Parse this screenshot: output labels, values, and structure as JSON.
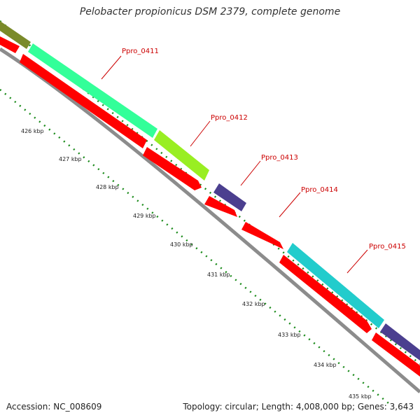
{
  "title": "Pelobacter propionicus DSM 2379, complete genome",
  "footer": {
    "accession": "Accession: NC_008609",
    "summary": "Topology: circular; Length: 4,008,000 bp; Genes: 3,643"
  },
  "colors": {
    "backbone": "#8c8c8c",
    "cds": "#ff0000",
    "tick": "#1a8a1a",
    "label": "#cc0000"
  },
  "genes": [
    {
      "id": "Ppro_0411",
      "color": "#33ff99"
    },
    {
      "id": "Ppro_0412",
      "color": "#99ee22"
    },
    {
      "id": "Ppro_0413",
      "color": "#4b3f8f"
    },
    {
      "id": "Ppro_0414",
      "color": null
    },
    {
      "id": "Ppro_0415",
      "color": "#22cccc"
    }
  ],
  "kbp_labels": [
    "426 kbp",
    "427 kbp",
    "428 kbp",
    "429 kbp",
    "430 kbp",
    "431 kbp",
    "432 kbp",
    "433 kbp",
    "434 kbp",
    "435 kbp"
  ]
}
